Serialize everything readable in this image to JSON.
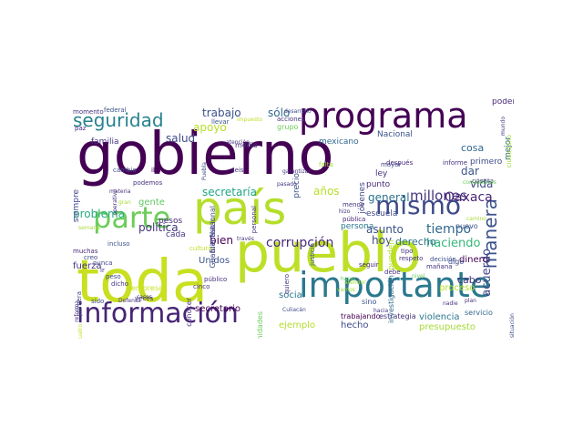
{
  "colors": {
    "background": "#ffffff",
    "palette": [
      "#440154",
      "#46327e",
      "#365c8d",
      "#277f8e",
      "#1fa187",
      "#4ac16d",
      "#a0da39",
      "#fde725"
    ]
  },
  "words": [
    {
      "text": "gobierno",
      "size": 64,
      "color": "#440154",
      "rot": 0
    },
    {
      "text": "pueblo",
      "size": 60,
      "color": "#bddf26",
      "rot": 0
    },
    {
      "text": "toda",
      "size": 64,
      "color": "#c8e020",
      "rot": 0
    },
    {
      "text": "país",
      "size": 50,
      "color": "#b5de2b",
      "rot": 0
    },
    {
      "text": "programa",
      "size": 38,
      "color": "#440154",
      "rot": 0
    },
    {
      "text": "importante",
      "size": 38,
      "color": "#2a788e",
      "rot": 0
    },
    {
      "text": "información",
      "size": 30,
      "color": "#482475",
      "rot": 0
    },
    {
      "text": "parte",
      "size": 32,
      "color": "#6ccd5a",
      "rot": 0
    },
    {
      "text": "mismo",
      "size": 28,
      "color": "#3e4a89",
      "rot": 0
    },
    {
      "text": "seguridad",
      "size": 20,
      "color": "#26828e",
      "rot": 0
    },
    {
      "text": "manera",
      "size": 20,
      "color": "#3b528b",
      "rot": 90
    },
    {
      "text": "millones",
      "size": 15,
      "color": "#46337e",
      "rot": 0
    },
    {
      "text": "corrupción",
      "size": 14,
      "color": "#482878",
      "rot": 0
    },
    {
      "text": "tiempo",
      "size": 14,
      "color": "#31688e",
      "rot": 0
    },
    {
      "text": "Oaxaca",
      "size": 14,
      "color": "#482677",
      "rot": 0
    },
    {
      "text": "haciendo",
      "size": 13,
      "color": "#35b779",
      "rot": 0
    },
    {
      "text": "acuerdo",
      "size": 13,
      "color": "#404688",
      "rot": 90
    },
    {
      "text": "trabajo",
      "size": 12,
      "color": "#3b528b",
      "rot": 0
    },
    {
      "text": "sólo",
      "size": 12,
      "color": "#31688e",
      "rot": 0
    },
    {
      "text": "apoyo",
      "size": 12,
      "color": "#b8de29",
      "rot": 0
    },
    {
      "text": "salud",
      "size": 12,
      "color": "#3e4a89",
      "rot": 0
    },
    {
      "text": "secretaría",
      "size": 12,
      "color": "#20a486",
      "rot": 0
    },
    {
      "text": "años",
      "size": 12,
      "color": "#b5de2b",
      "rot": 0
    },
    {
      "text": "general",
      "size": 12,
      "color": "#2c728e",
      "rot": 0
    },
    {
      "text": "asunto",
      "size": 12,
      "color": "#3b528b",
      "rot": 0
    },
    {
      "text": "problema",
      "size": 12,
      "color": "#27ad81",
      "rot": 0
    },
    {
      "text": "política",
      "size": 12,
      "color": "#46327e",
      "rot": 0
    },
    {
      "text": "hoy",
      "size": 12,
      "color": "#3e4a89",
      "rot": 0
    },
    {
      "text": "derecho",
      "size": 11,
      "color": "#2c728e",
      "rot": 0
    },
    {
      "text": "bien",
      "size": 12,
      "color": "#440154",
      "rot": 0
    },
    {
      "text": "vida",
      "size": 12,
      "color": "#3e4a89",
      "rot": 0
    },
    {
      "text": "dar",
      "size": 12,
      "color": "#3b528b",
      "rot": 0
    },
    {
      "text": "cosa",
      "size": 11,
      "color": "#31688e",
      "rot": 0
    },
    {
      "text": "cabo",
      "size": 11,
      "color": "#46327e",
      "rot": 0
    },
    {
      "text": "dinero",
      "size": 10,
      "color": "#440154",
      "rot": 0
    },
    {
      "text": "social",
      "size": 10,
      "color": "#2a788e",
      "rot": 0
    },
    {
      "text": "proceso",
      "size": 10,
      "color": "#b5de2b",
      "rot": 0
    },
    {
      "text": "presupuesto",
      "size": 10,
      "color": "#a5db36",
      "rot": 0
    },
    {
      "text": "violencia",
      "size": 10,
      "color": "#2a788e",
      "rot": 0
    },
    {
      "text": "hecho",
      "size": 10,
      "color": "#3e4a89",
      "rot": 0
    },
    {
      "text": "ejemplo",
      "size": 10,
      "color": "#b5de2b",
      "rot": 0
    },
    {
      "text": "secretario",
      "size": 10,
      "color": "#440154",
      "rot": 0
    },
    {
      "text": "fuerza",
      "size": 10,
      "color": "#46327e",
      "rot": 0
    },
    {
      "text": "Unidos",
      "size": 10,
      "color": "#3b528b",
      "rot": 0
    },
    {
      "text": "gente",
      "size": 10,
      "color": "#5ec962",
      "rot": 0
    },
    {
      "text": "pesos",
      "size": 9,
      "color": "#482878",
      "rot": 0
    },
    {
      "text": "cada",
      "size": 9,
      "color": "#46337e",
      "rot": 0
    },
    {
      "text": "escuela",
      "size": 9,
      "color": "#3e4a89",
      "rot": 0
    },
    {
      "text": "persona",
      "size": 9,
      "color": "#2a788e",
      "rot": 0
    },
    {
      "text": "punto",
      "size": 9,
      "color": "#482878",
      "rot": 0
    },
    {
      "text": "ley",
      "size": 9,
      "color": "#46327e",
      "rot": 0
    },
    {
      "text": "mexicano",
      "size": 9,
      "color": "#31688e",
      "rot": 0
    },
    {
      "text": "Nacional",
      "size": 9,
      "color": "#3b528b",
      "rot": 0
    },
    {
      "text": "jóvenes",
      "size": 9,
      "color": "#404688",
      "rot": 90
    },
    {
      "text": "pueden",
      "size": 9,
      "color": "#b5de2b",
      "rot": 90
    },
    {
      "text": "primero",
      "size": 9,
      "color": "#3e4a89",
      "rot": 0
    },
    {
      "text": "mejor",
      "size": 9,
      "color": "#31688e",
      "rot": 90
    },
    {
      "text": "poder",
      "size": 9,
      "color": "#482878",
      "rot": 0
    },
    {
      "text": "precio",
      "size": 9,
      "color": "#3b528b",
      "rot": 90
    },
    {
      "text": "medio",
      "size": 8,
      "color": "#46327e",
      "rot": 0
    },
    {
      "text": "familia",
      "size": 9,
      "color": "#46327e",
      "rot": 0
    },
    {
      "text": "siempre",
      "size": 9,
      "color": "#404688",
      "rot": 90
    },
    {
      "text": "conocer",
      "size": 8,
      "color": "#46337e",
      "rot": 90
    },
    {
      "text": "empresa",
      "size": 8,
      "color": "#c8e020",
      "rot": 0
    },
    {
      "text": "comunidades",
      "size": 8,
      "color": "#6ccd5a",
      "rot": 90
    },
    {
      "text": "Bienestar",
      "size": 8,
      "color": "#46327e",
      "rot": 90
    },
    {
      "text": "Guardia Nacional",
      "size": 8,
      "color": "#3e4a89",
      "rot": 90
    },
    {
      "text": "trabajando",
      "size": 8,
      "color": "#440154",
      "rot": 0
    },
    {
      "text": "estrategia",
      "size": 8,
      "color": "#46327e",
      "rot": 0
    },
    {
      "text": "investigación",
      "size": 8,
      "color": "#31688e",
      "rot": 90
    },
    {
      "text": "nuevo",
      "size": 8,
      "color": "#3b528b",
      "rot": 0
    },
    {
      "text": "digo",
      "size": 8,
      "color": "#3e4a89",
      "rot": 0
    },
    {
      "text": "servicio",
      "size": 8,
      "color": "#31688e",
      "rot": 0
    },
    {
      "text": "ciudadano",
      "size": 7,
      "color": "#a0da39",
      "rot": 90
    },
    {
      "text": "momento",
      "size": 7,
      "color": "#46327e",
      "rot": 0
    },
    {
      "text": "federal",
      "size": 7,
      "color": "#3b528b",
      "rot": 0
    },
    {
      "text": "acciones",
      "size": 7,
      "color": "#46327e",
      "rot": 0
    },
    {
      "text": "grupo",
      "size": 8,
      "color": "#6ccd5a",
      "rot": 0
    },
    {
      "text": "llevar",
      "size": 7,
      "color": "#3b528b",
      "rot": 0
    },
    {
      "text": "paz",
      "size": 7,
      "color": "#482878",
      "rot": 0
    },
    {
      "text": "cambio",
      "size": 7,
      "color": "#3e4a89",
      "rot": 0
    },
    {
      "text": "iba",
      "size": 7,
      "color": "#440154",
      "rot": 0
    },
    {
      "text": "seis",
      "size": 7,
      "color": "#46327e",
      "rot": 0
    },
    {
      "text": "podemos",
      "size": 7,
      "color": "#46327e",
      "rot": 0
    },
    {
      "text": "incluso",
      "size": 7,
      "color": "#3b528b",
      "rot": 0
    },
    {
      "text": "cultura",
      "size": 7,
      "color": "#bddf26",
      "rot": 0
    },
    {
      "text": "muchas",
      "size": 7,
      "color": "#482878",
      "rot": 0
    },
    {
      "text": "creo",
      "size": 7,
      "color": "#3e4a89",
      "rot": 0
    },
    {
      "text": "nunca",
      "size": 7,
      "color": "#404688",
      "rot": 0
    },
    {
      "text": "ir",
      "size": 7,
      "color": "#46327e",
      "rot": 0
    },
    {
      "text": "peso",
      "size": 7,
      "color": "#3e4a89",
      "rot": 0
    },
    {
      "text": "dicho",
      "size": 7,
      "color": "#46327e",
      "rot": 0
    },
    {
      "text": "sido",
      "size": 7,
      "color": "#3e4a89",
      "rot": 0
    },
    {
      "text": "veces",
      "size": 7,
      "color": "#46327e",
      "rot": 0
    },
    {
      "text": "cinco",
      "size": 7,
      "color": "#46327e",
      "rot": 0
    },
    {
      "text": "público",
      "size": 7,
      "color": "#46327e",
      "rot": 0
    },
    {
      "text": "pública",
      "size": 7,
      "color": "#482878",
      "rot": 0
    },
    {
      "text": "menos",
      "size": 7,
      "color": "#46327e",
      "rot": 0
    },
    {
      "text": "mayor",
      "size": 7,
      "color": "#404688",
      "rot": 0
    },
    {
      "text": "después",
      "size": 7,
      "color": "#482878",
      "rot": 0
    },
    {
      "text": "informe",
      "size": 7,
      "color": "#46327e",
      "rot": 0
    },
    {
      "text": "falta",
      "size": 7,
      "color": "#a5db36",
      "rot": 0
    },
    {
      "text": "sino",
      "size": 8,
      "color": "#3b528b",
      "rot": 0
    },
    {
      "text": "quiero",
      "size": 7,
      "color": "#46327e",
      "rot": 90
    },
    {
      "text": "debe",
      "size": 7,
      "color": "#46327e",
      "rot": 0
    },
    {
      "text": "seguir",
      "size": 7,
      "color": "#482878",
      "rot": 0
    },
    {
      "text": "tipo",
      "size": 7,
      "color": "#46327e",
      "rot": 0
    },
    {
      "text": "decisión",
      "size": 7,
      "color": "#3b528b",
      "rot": 0
    },
    {
      "text": "mañana",
      "size": 7,
      "color": "#46327e",
      "rot": 0
    },
    {
      "text": "cuenta",
      "size": 7,
      "color": "#46327e",
      "rot": 0
    },
    {
      "text": "personal",
      "size": 7,
      "color": "#46327e",
      "rot": 90
    },
    {
      "text": "justicia",
      "size": 7,
      "color": "#3b528b",
      "rot": 90
    },
    {
      "text": "respeto",
      "size": 7,
      "color": "#46327e",
      "rot": 0
    },
    {
      "text": "primera",
      "size": 7,
      "color": "#3e4a89",
      "rot": 90
    },
    {
      "text": "atención",
      "size": 6,
      "color": "#46327e",
      "rot": 0
    },
    {
      "text": "desarrollo",
      "size": 6,
      "color": "#3e4a89",
      "rot": 0
    },
    {
      "text": "pasado",
      "size": 6,
      "color": "#46327e",
      "rot": 0
    },
    {
      "text": "Puebla",
      "size": 6,
      "color": "#3e4a89",
      "rot": 90
    },
    {
      "text": "hizo",
      "size": 6,
      "color": "#46327e",
      "rot": 0
    },
    {
      "text": "nivel",
      "size": 6,
      "color": "#6ccd5a",
      "rot": 0
    },
    {
      "text": "nadie",
      "size": 6,
      "color": "#46327e",
      "rot": 0
    },
    {
      "text": "hacia",
      "size": 6,
      "color": "#46327e",
      "rot": 0
    },
    {
      "text": "Culiacán",
      "size": 6,
      "color": "#3e4a89",
      "rot": 0
    },
    {
      "text": "Defensa",
      "size": 6,
      "color": "#46327e",
      "rot": 0
    },
    {
      "text": "casos",
      "size": 6,
      "color": "#46327e",
      "rot": 0
    },
    {
      "text": "materia",
      "size": 6,
      "color": "#46327e",
      "rot": 0
    },
    {
      "text": "gran",
      "size": 6,
      "color": "#a5db36",
      "rot": 0
    },
    {
      "text": "semana",
      "size": 6,
      "color": "#a5db36",
      "rot": 0
    },
    {
      "text": "reforma",
      "size": 6,
      "color": "#46327e",
      "rot": 90
    },
    {
      "text": "cuatro",
      "size": 6,
      "color": "#bddf26",
      "rot": 90
    },
    {
      "text": "situación",
      "size": 6,
      "color": "#3e4a89",
      "rot": 90
    },
    {
      "text": "impuesto",
      "size": 6,
      "color": "#bddf26",
      "rot": 0
    },
    {
      "text": "garantizar",
      "size": 6,
      "color": "#46327e",
      "rot": 0
    },
    {
      "text": "atender",
      "size": 6,
      "color": "#a5db36",
      "rot": 0
    },
    {
      "text": "plan",
      "size": 6,
      "color": "#46327e",
      "rot": 0
    },
    {
      "text": "camino",
      "size": 6,
      "color": "#a5db36",
      "rot": 0
    },
    {
      "text": "mundo",
      "size": 6,
      "color": "#46327e",
      "rot": 90
    },
    {
      "text": "compañeros",
      "size": 6,
      "color": "#6ccd5a",
      "rot": 0
    },
    {
      "text": "operativo",
      "size": 6,
      "color": "#46327e",
      "rot": 90
    },
    {
      "text": "través",
      "size": 6,
      "color": "#46327e",
      "rot": 0
    },
    {
      "text": "vamos",
      "size": 6,
      "color": "#a5db36",
      "rot": 0
    },
    {
      "text": "hacer",
      "size": 6,
      "color": "#6ccd5a",
      "rot": 0
    }
  ]
}
